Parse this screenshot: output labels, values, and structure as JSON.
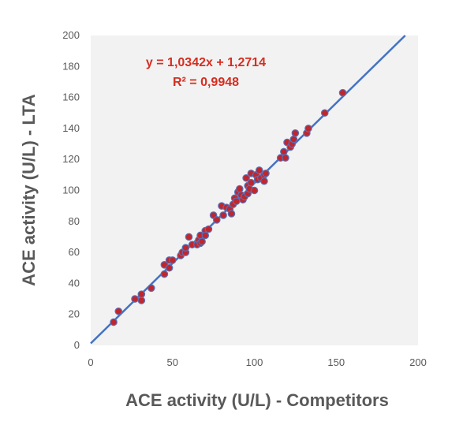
{
  "chart_data": {
    "type": "scatter",
    "title": "",
    "xlabel": "ACE activity (U/L) - Competitors",
    "ylabel": "ACE activity (U/L) - LTA",
    "xlim": [
      0,
      200
    ],
    "ylim": [
      0,
      200
    ],
    "x_ticks": [
      "0",
      "50",
      "100",
      "150",
      "200"
    ],
    "y_ticks": [
      "0",
      "20",
      "40",
      "60",
      "80",
      "100",
      "120",
      "140",
      "160",
      "180",
      "200"
    ],
    "grid": false,
    "legend": "none",
    "colors": {
      "point_fill": "#c0262d",
      "point_edge": "#5b6fb5",
      "trendline": "#4472c4",
      "plot_bg": "#f2f2f2",
      "equation": "#d62d20"
    },
    "trendline": {
      "slope": 1.0342,
      "intercept": 1.2714
    },
    "annotations": {
      "equation": "y = 1,0342x + 1,2714",
      "r2": "R² = 0,9948"
    },
    "series": [
      {
        "x": [
          14,
          17,
          27,
          31,
          31,
          37,
          45,
          45,
          48,
          48,
          50,
          55,
          56,
          58,
          58,
          60,
          62,
          65,
          66,
          67,
          67,
          68,
          70,
          70,
          72,
          75,
          77,
          80,
          81,
          83,
          85,
          86,
          87,
          88,
          89,
          90,
          91,
          92,
          93,
          94,
          95,
          96,
          96,
          97,
          98,
          98,
          100,
          101,
          102,
          103,
          104,
          106,
          106,
          107,
          116,
          118,
          119,
          120,
          122,
          123,
          124,
          125,
          132,
          133,
          143,
          154
        ],
        "y": [
          15,
          22,
          30,
          29,
          33,
          37,
          46,
          52,
          50,
          55,
          55,
          58,
          60,
          60,
          63,
          70,
          65,
          65,
          68,
          71,
          66,
          67,
          74,
          71,
          75,
          84,
          81,
          90,
          84,
          89,
          88,
          85,
          91,
          95,
          93,
          99,
          101,
          97,
          94,
          96,
          108,
          98,
          103,
          101,
          105,
          111,
          100,
          110,
          107,
          113,
          108,
          110,
          106,
          111,
          121,
          125,
          121,
          131,
          128,
          130,
          133,
          137,
          137,
          140,
          150,
          163
        ]
      }
    ]
  }
}
